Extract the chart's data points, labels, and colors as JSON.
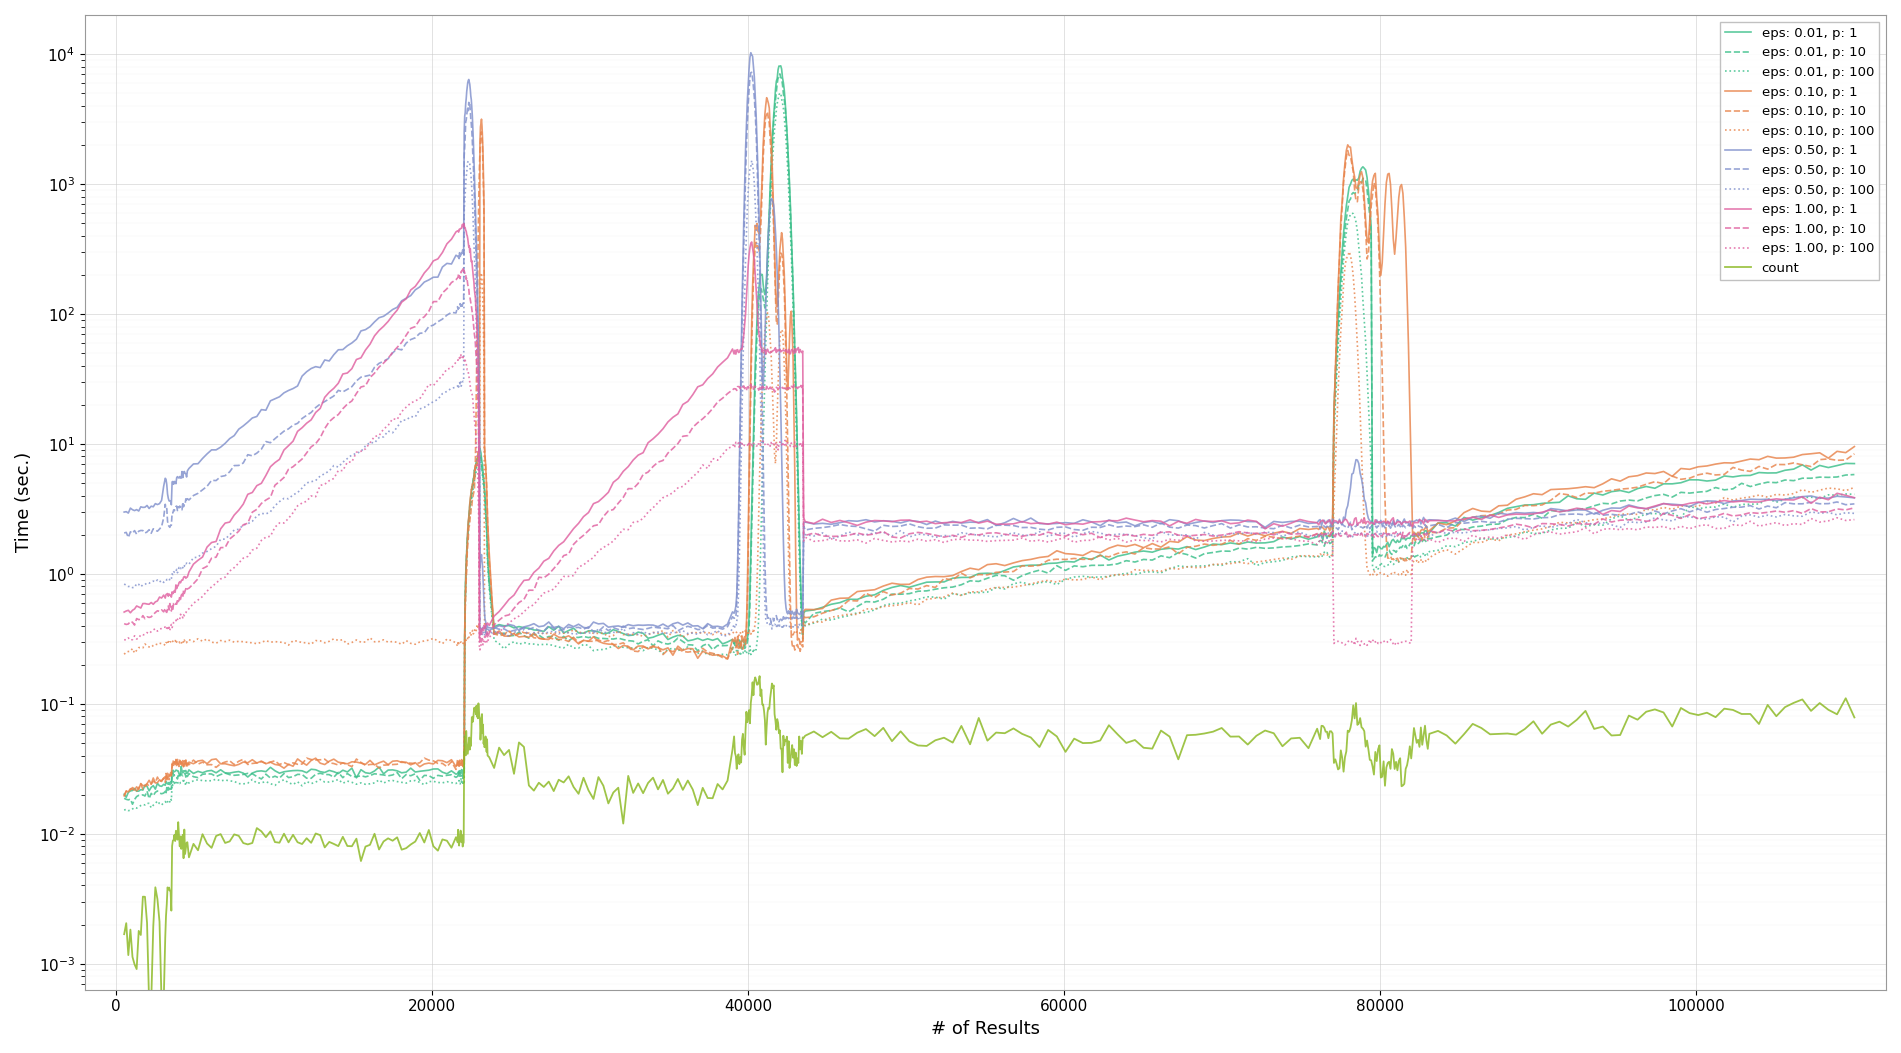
{
  "title": "",
  "xlabel": "# of Results",
  "ylabel": "Time (sec.)",
  "series": [
    {
      "label": "eps: 0.01, p: 1",
      "color": "#3bbf8a",
      "ls": "solid",
      "lw": 1.2
    },
    {
      "label": "eps: 0.01, p: 10",
      "color": "#3bbf8a",
      "ls": "dashed",
      "lw": 1.2
    },
    {
      "label": "eps: 0.01, p: 100",
      "color": "#3bbf8a",
      "ls": "dotted",
      "lw": 1.2
    },
    {
      "label": "eps: 0.10, p: 1",
      "color": "#e8834a",
      "ls": "solid",
      "lw": 1.2
    },
    {
      "label": "eps: 0.10, p: 10",
      "color": "#e8834a",
      "ls": "dashed",
      "lw": 1.2
    },
    {
      "label": "eps: 0.10, p: 100",
      "color": "#e8834a",
      "ls": "dotted",
      "lw": 1.2
    },
    {
      "label": "eps: 0.50, p: 1",
      "color": "#8090cc",
      "ls": "solid",
      "lw": 1.2
    },
    {
      "label": "eps: 0.50, p: 10",
      "color": "#8090cc",
      "ls": "dashed",
      "lw": 1.2
    },
    {
      "label": "eps: 0.50, p: 100",
      "color": "#8090cc",
      "ls": "dotted",
      "lw": 1.2
    },
    {
      "label": "eps: 1.00, p: 1",
      "color": "#e060a0",
      "ls": "solid",
      "lw": 1.2
    },
    {
      "label": "eps: 1.00, p: 10",
      "color": "#e060a0",
      "ls": "dashed",
      "lw": 1.2
    },
    {
      "label": "eps: 1.00, p: 100",
      "color": "#e060a0",
      "ls": "dotted",
      "lw": 1.2
    },
    {
      "label": "count",
      "color": "#8ab820",
      "ls": "solid",
      "lw": 1.3
    }
  ]
}
